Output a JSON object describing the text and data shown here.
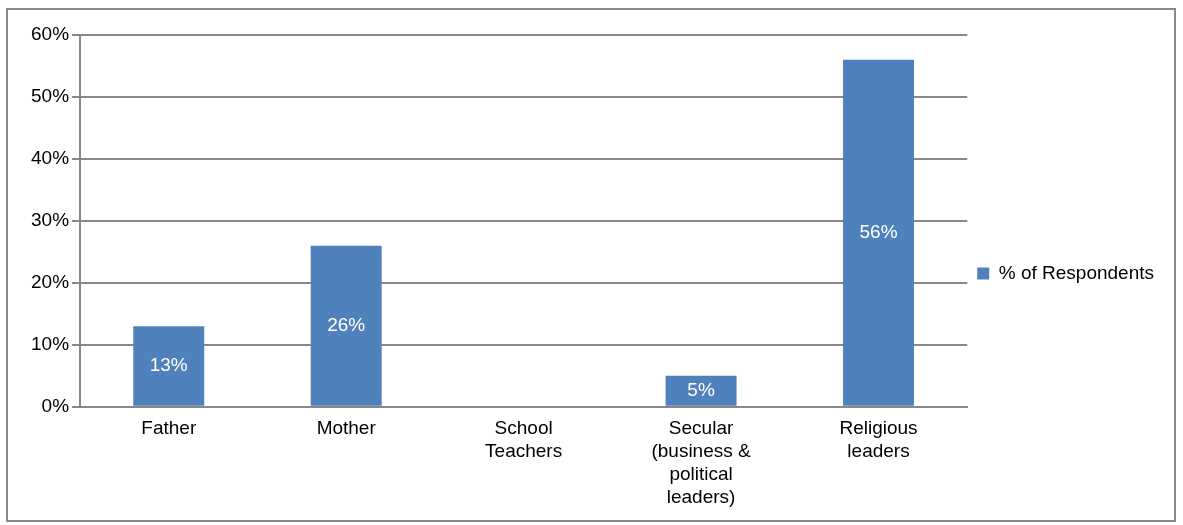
{
  "chart_data": {
    "type": "bar",
    "categories": [
      "Father",
      "Mother",
      "School Teachers",
      "Secular (business & political leaders)",
      "Religious leaders"
    ],
    "series": [
      {
        "name": "% of Respondents",
        "color": "#4f81bd",
        "values": [
          13,
          26,
          0,
          5,
          56
        ],
        "value_labels": [
          "13%",
          "26%",
          null,
          "5%",
          "56%"
        ]
      }
    ],
    "ylim": [
      0,
      60
    ],
    "yticks": [
      {
        "value": 0,
        "label": "0%"
      },
      {
        "value": 10,
        "label": "10%"
      },
      {
        "value": 20,
        "label": "20%"
      },
      {
        "value": 30,
        "label": "30%"
      },
      {
        "value": 40,
        "label": "40%"
      },
      {
        "value": 50,
        "label": "50%"
      },
      {
        "value": 60,
        "label": "60%"
      }
    ],
    "grid": "y",
    "legend": "right"
  }
}
